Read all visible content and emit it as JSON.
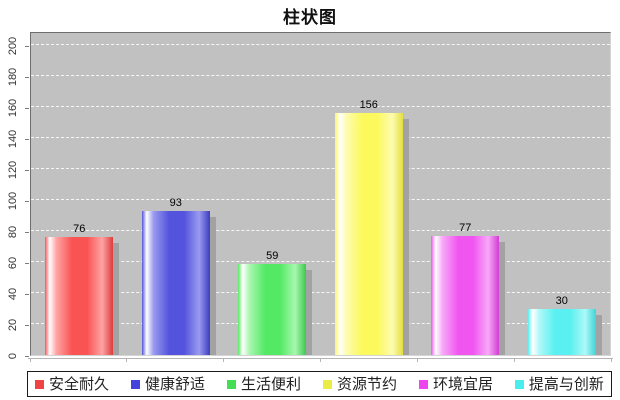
{
  "chart_data": {
    "type": "bar",
    "title": "柱状图",
    "categories": [
      "安全耐久",
      "健康舒适",
      "生活便利",
      "资源节约",
      "环境宜居",
      "提高与创新"
    ],
    "values": [
      76,
      93,
      59,
      156,
      77,
      30
    ],
    "value_labels": [
      "76",
      "93",
      "59",
      "156",
      "77",
      "30"
    ],
    "colors": [
      {
        "main": "#f95353",
        "light": "#ffa3a3",
        "dark": "#dd3c3c",
        "legend": "#ee4444"
      },
      {
        "main": "#5353dd",
        "light": "#9a9af0",
        "dark": "#3c3cc0",
        "legend": "#4444dd"
      },
      {
        "main": "#54e964",
        "light": "#a8f7b0",
        "dark": "#3cc94e",
        "legend": "#44dd55"
      },
      {
        "main": "#fcf95c",
        "light": "#fdfcb0",
        "dark": "#e3df40",
        "legend": "#ebeb45"
      },
      {
        "main": "#f055f0",
        "light": "#f8a8f8",
        "dark": "#d23cd2",
        "legend": "#ee44ee"
      },
      {
        "main": "#58f0f0",
        "light": "#aef8f8",
        "dark": "#3ed5d5",
        "legend": "#4aeded"
      }
    ],
    "ylim": [
      0,
      200
    ],
    "y_ticks": [
      0,
      20,
      40,
      60,
      80,
      100,
      120,
      140,
      160,
      180,
      200
    ],
    "xlabel": "",
    "ylabel": "",
    "grid": "horizontal white dashed",
    "plot_bg": "#c1c1c1",
    "shadow_color": "#a2a2a2",
    "legend_position": "bottom"
  }
}
